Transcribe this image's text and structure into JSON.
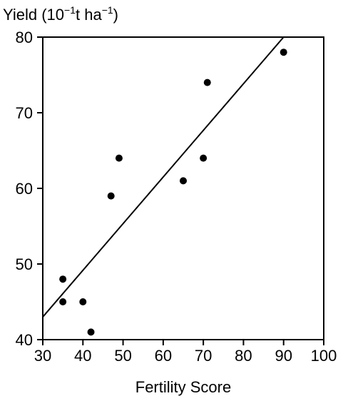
{
  "chart_data": {
    "type": "scatter",
    "ylabel": {
      "prefix": "Yield (10",
      "exp1": "−1",
      "middle": "t ha",
      "exp2": "−1",
      "suffix": ")"
    },
    "xlabel": "Fertility Score",
    "xlim": [
      30,
      100
    ],
    "ylim": [
      40,
      80
    ],
    "x_ticks": [
      "30",
      "40",
      "50",
      "60",
      "70",
      "80",
      "90",
      "100"
    ],
    "y_ticks": [
      "40",
      "50",
      "60",
      "70",
      "80"
    ],
    "x_tick_values": [
      30,
      40,
      50,
      60,
      70,
      80,
      90,
      100
    ],
    "y_tick_values": [
      40,
      50,
      60,
      70,
      80
    ],
    "points": [
      {
        "x": 35,
        "y": 48
      },
      {
        "x": 35,
        "y": 45
      },
      {
        "x": 40,
        "y": 45
      },
      {
        "x": 42,
        "y": 41
      },
      {
        "x": 47,
        "y": 59
      },
      {
        "x": 49,
        "y": 64
      },
      {
        "x": 65,
        "y": 61
      },
      {
        "x": 70,
        "y": 64
      },
      {
        "x": 71,
        "y": 74
      },
      {
        "x": 90,
        "y": 78
      }
    ],
    "fit_line": {
      "x": [
        30,
        90
      ],
      "y": [
        43,
        80
      ]
    },
    "grid": false,
    "legend": "none"
  }
}
